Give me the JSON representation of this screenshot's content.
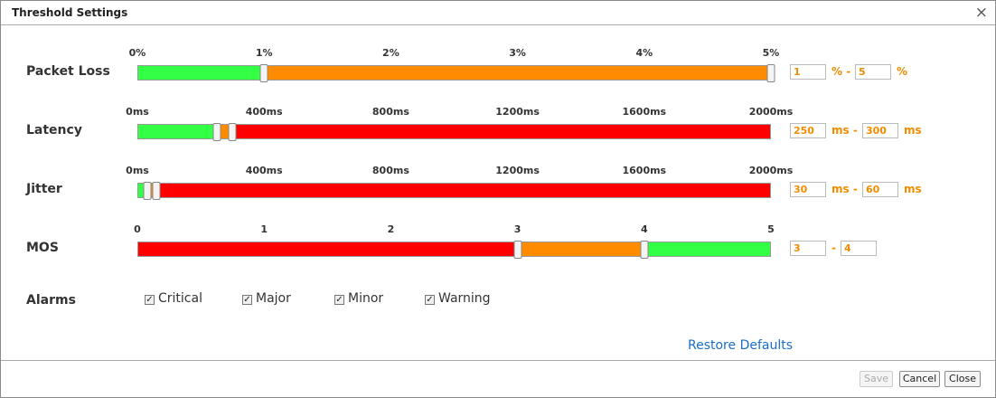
{
  "dialog": {
    "title": "Threshold Settings",
    "close_icon": "×",
    "sliders": [
      {
        "label": "Packet Loss",
        "ticks": [
          {
            "value": 0,
            "label": "0%"
          },
          {
            "value": 1,
            "label": "1%"
          },
          {
            "value": 2,
            "label": "2%"
          },
          {
            "value": 3,
            "label": "3%"
          },
          {
            "value": 4,
            "label": "4%"
          },
          {
            "value": 5,
            "label": "5%"
          }
        ],
        "low": 1,
        "high": 5,
        "separator": "% -",
        "unit": "%",
        "colors": [
          "#33ff44",
          "#ff8c00",
          "#ff0000"
        ]
      },
      {
        "label": "Latency",
        "ticks": [
          {
            "value": 0,
            "label": "0ms"
          },
          {
            "value": 400,
            "label": "400ms"
          },
          {
            "value": 800,
            "label": "800ms"
          },
          {
            "value": 1200,
            "label": "1200ms"
          },
          {
            "value": 1600,
            "label": "1600ms"
          },
          {
            "value": 2000,
            "label": "2000ms"
          }
        ],
        "low": 250,
        "high": 300,
        "separator": "ms -",
        "unit": "ms",
        "colors": [
          "#33ff44",
          "#ff8c00",
          "#ff0000"
        ]
      },
      {
        "label": "Jitter",
        "ticks": [
          {
            "value": 0,
            "label": "0ms"
          },
          {
            "value": 400,
            "label": "400ms"
          },
          {
            "value": 800,
            "label": "800ms"
          },
          {
            "value": 1200,
            "label": "1200ms"
          },
          {
            "value": 1600,
            "label": "1600ms"
          },
          {
            "value": 2000,
            "label": "2000ms"
          }
        ],
        "low": 30,
        "high": 60,
        "separator": "ms -",
        "unit": "ms",
        "colors": [
          "#33ff44",
          "#ff8c00",
          "#ff0000"
        ]
      },
      {
        "label": "MOS",
        "ticks": [
          0,
          1,
          2,
          3,
          4,
          5
        ],
        "low": 3,
        "high": 4,
        "separator": "-",
        "colors": [
          "#ff0000",
          "#ff8c00",
          "#33ff44"
        ]
      }
    ],
    "alarms": {
      "label": "Alarms",
      "options": [
        {
          "label": "Critical",
          "checked": true
        },
        {
          "label": "Major",
          "checked": true
        },
        {
          "label": "Minor",
          "checked": true
        },
        {
          "label": "Warning",
          "checked": true
        }
      ]
    },
    "restore_link": "Restore Defaults",
    "buttons": {
      "save": "Save",
      "cancel": "Cancel",
      "close": "Close"
    }
  }
}
